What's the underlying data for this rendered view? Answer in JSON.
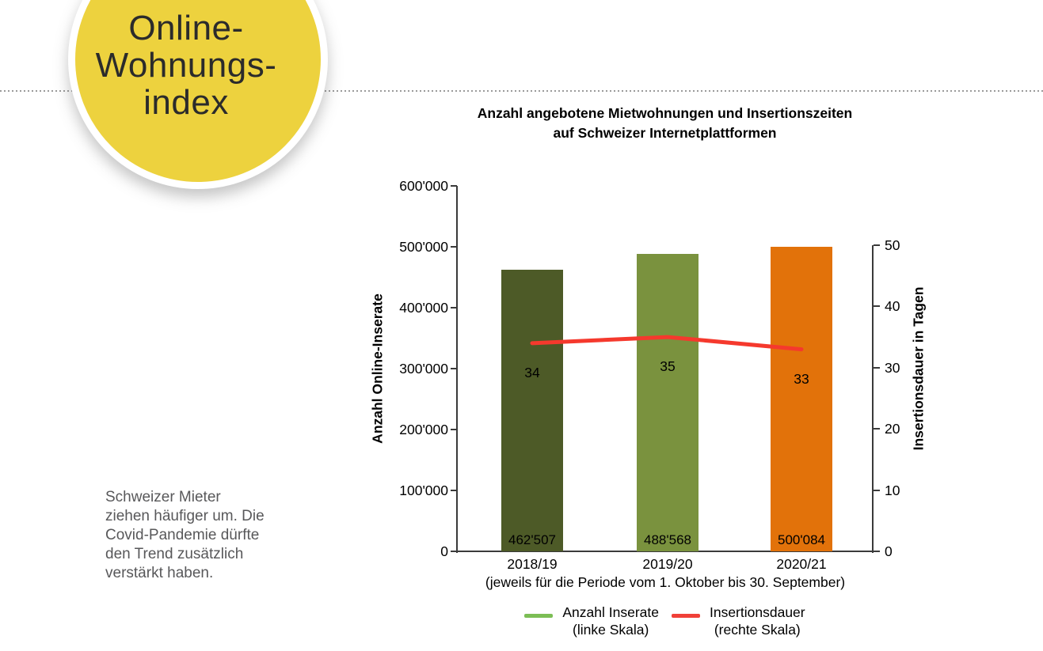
{
  "badge": {
    "text": "Online-\nWohnungs-\nindex",
    "bg_color": "#EDD23E"
  },
  "sidebar_note": "Schweizer Mieter\nziehen häufiger um. Die\nCovid-Pandemie dürfte\nden Trend zusätzlich\nverstärkt haben.",
  "chart_data": {
    "type": "bar",
    "title": "Anzahl angebotene Mietwohnungen und Insertionszeiten\nauf Schweizer Internetplattformen",
    "categories": [
      "2018/19",
      "2019/20",
      "2020/21"
    ],
    "x_caption": "(jeweils für die Periode vom 1. Oktober bis 30. September)",
    "grid": false,
    "legend_position": "bottom",
    "left_axis": {
      "label": "Anzahl Online-Inserate",
      "min": 0,
      "max": 600000,
      "ticks": [
        {
          "v": 0,
          "label": "0"
        },
        {
          "v": 100000,
          "label": "100'000"
        },
        {
          "v": 200000,
          "label": "200'000"
        },
        {
          "v": 300000,
          "label": "300'000"
        },
        {
          "v": 400000,
          "label": "400'000"
        },
        {
          "v": 500000,
          "label": "500'000"
        },
        {
          "v": 600000,
          "label": "600'000"
        }
      ]
    },
    "right_axis": {
      "label": "Insertionsdauer in Tagen",
      "min": 0,
      "max": 50,
      "ticks": [
        {
          "v": 0,
          "label": "0"
        },
        {
          "v": 10,
          "label": "10"
        },
        {
          "v": 20,
          "label": "20"
        },
        {
          "v": 30,
          "label": "30"
        },
        {
          "v": 40,
          "label": "40"
        },
        {
          "v": 50,
          "label": "50"
        }
      ]
    },
    "series": [
      {
        "name": "Anzahl Inserate (linke Skala)",
        "type": "bar",
        "axis": "left",
        "values": [
          462507,
          488568,
          500084
        ],
        "value_labels": [
          "462'507",
          "488'568",
          "500'084"
        ],
        "colors": [
          "#4D5A27",
          "#7A923E",
          "#E2720A"
        ]
      },
      {
        "name": "Insertionsdauer (rechte Skala)",
        "type": "line",
        "axis": "right",
        "values": [
          34,
          35,
          33
        ],
        "value_labels": [
          "34",
          "35",
          "33"
        ],
        "color": "#F5392D"
      }
    ],
    "legend": [
      {
        "label": "Anzahl Inserate\n(linke Skala)",
        "swatch_color": "#7CBE55"
      },
      {
        "label": "Insertionsdauer\n(rechte Skala)",
        "swatch_color": "#F04038"
      }
    ]
  }
}
